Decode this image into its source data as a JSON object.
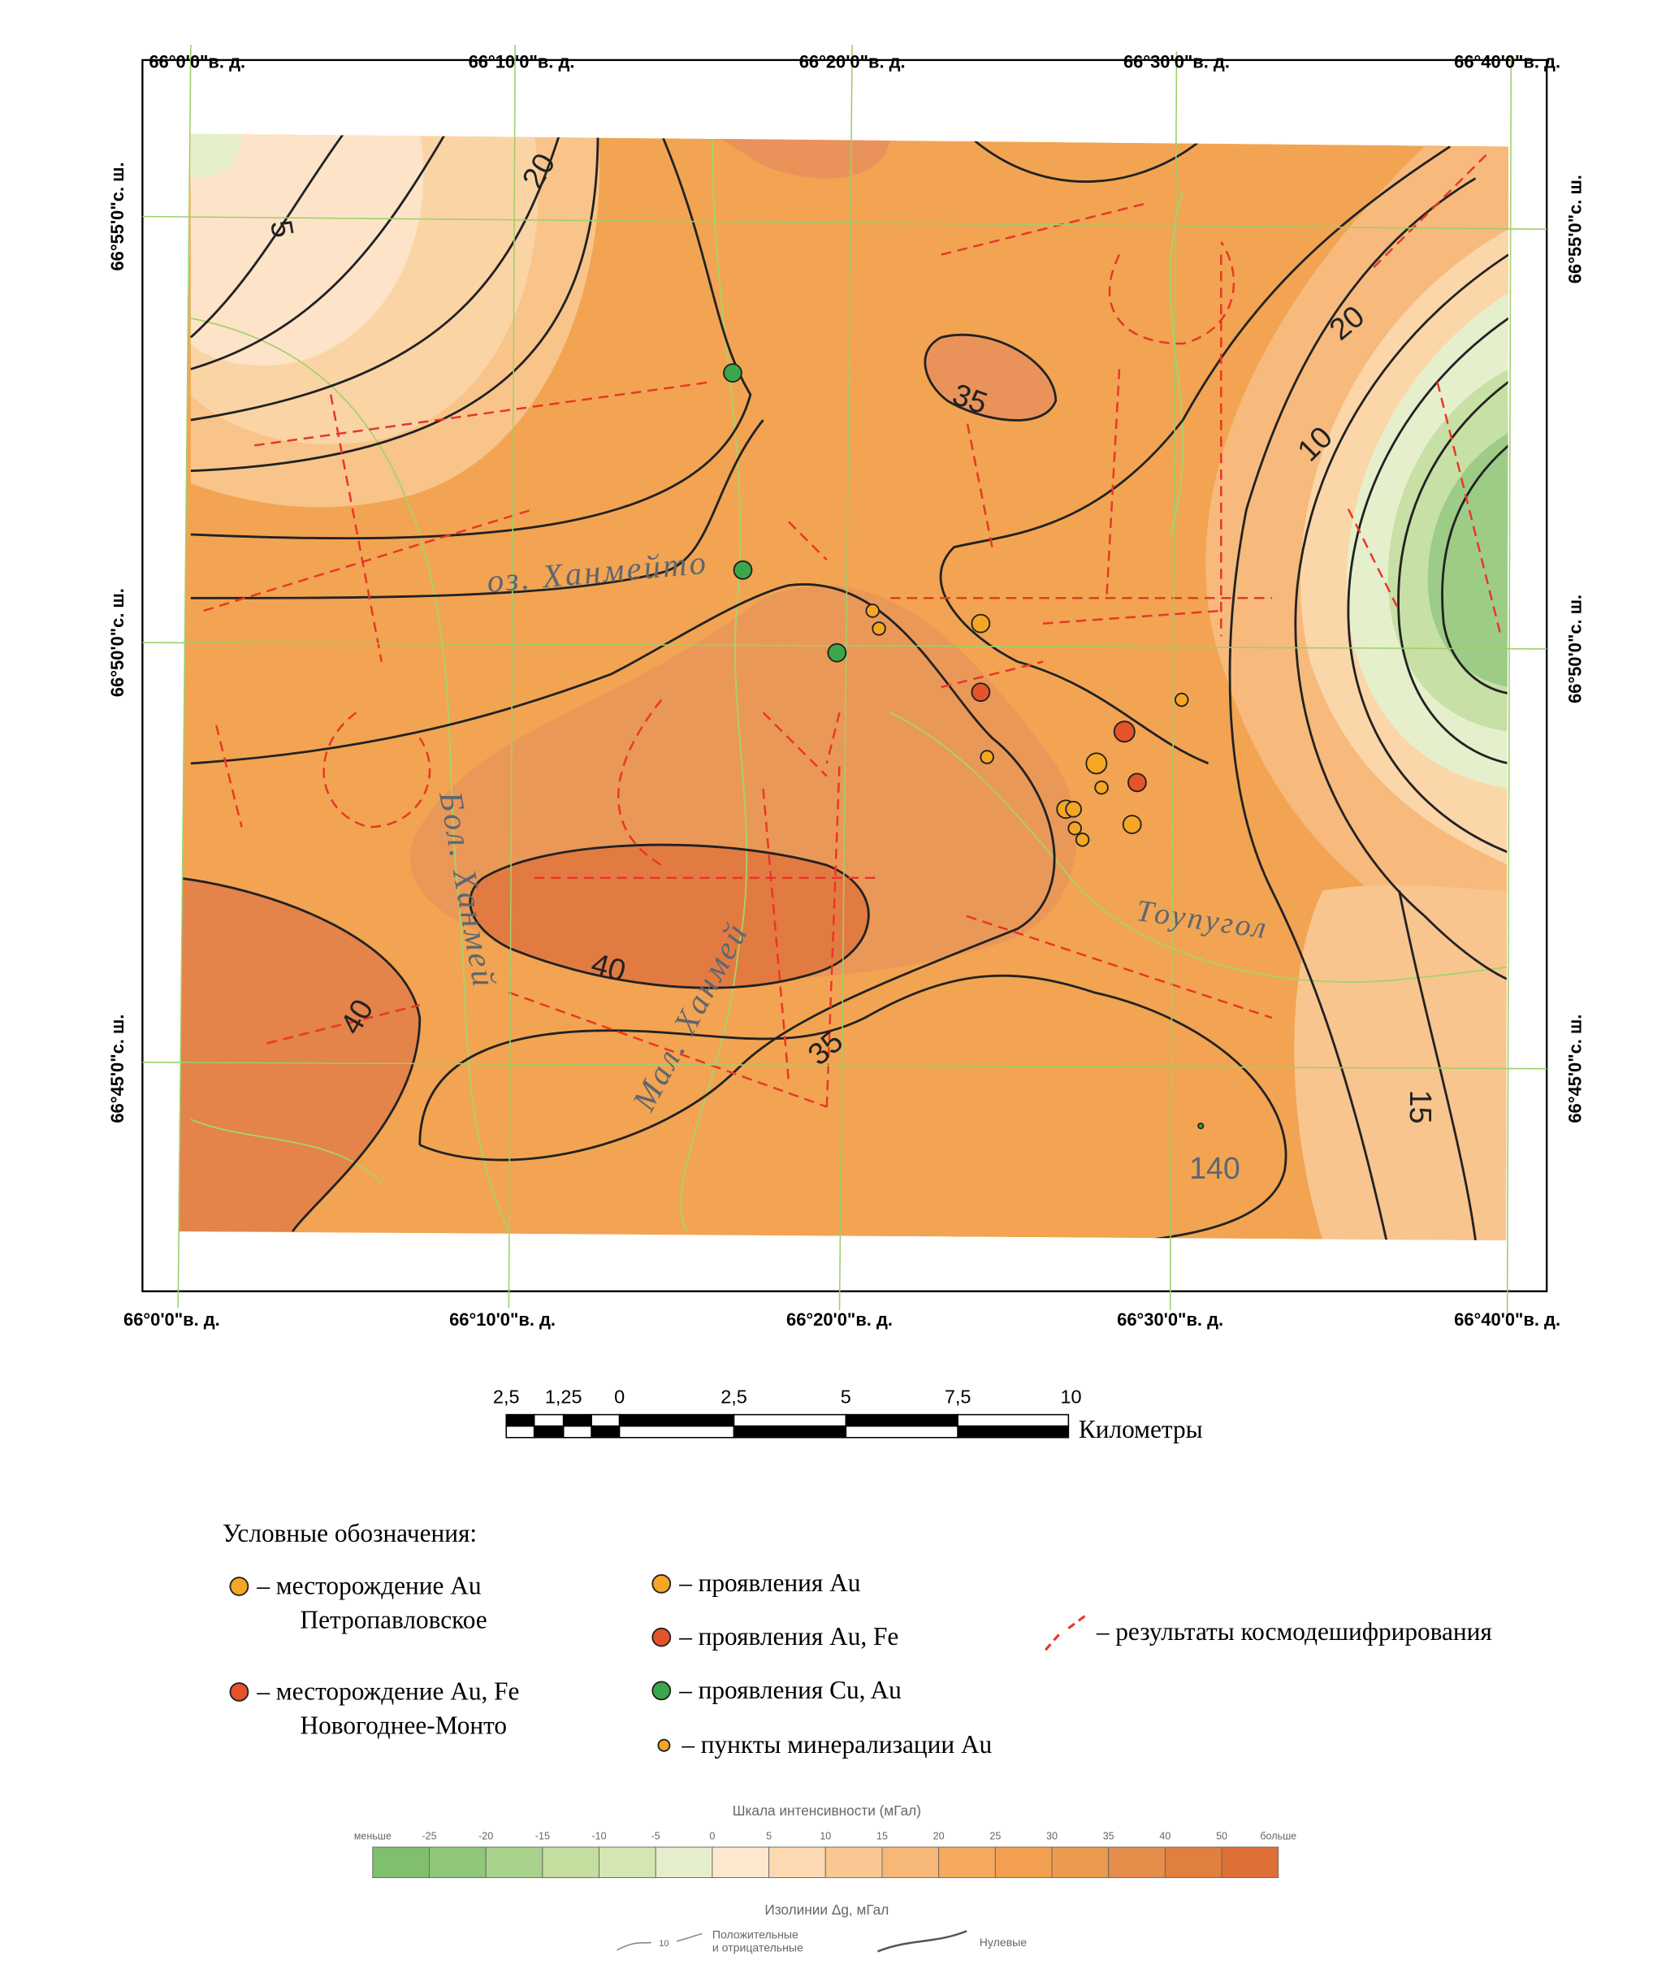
{
  "map": {
    "top_lon_labels": [
      "66°0'0\"в. д.",
      "66°10'0\"в. д.",
      "66°20'0\"в. д.",
      "66°30'0\"в. д.",
      "66°40'0\"в. д."
    ],
    "bottom_lon_labels": [
      "66°0'0\"в. д.",
      "66°10'0\"в. д.",
      "66°20'0\"в. д.",
      "66°30'0\"в. д.",
      "66°40'0\"в. д."
    ],
    "left_lat_labels": [
      "66°55'0\"с. ш.",
      "66°50'0\"с. ш.",
      "66°45'0\"с. ш."
    ],
    "right_lat_labels": [
      "66°55'0\"с. ш.",
      "66°50'0\"с. ш.",
      "66°45'0\"с. ш."
    ],
    "contour_labels": [
      "20",
      "5",
      "35",
      "20",
      "10",
      "40",
      "40",
      "35",
      "15"
    ],
    "place_labels": [
      "оз. Ханмейто",
      "Бол. Ханмей",
      "Мал. Ханмей",
      "Тоупугол",
      "140"
    ]
  },
  "scale_bar": {
    "ticks": [
      "2,5",
      "1,25",
      "0",
      "2,5",
      "5",
      "7,5",
      "10"
    ],
    "unit": "Километры"
  },
  "legend": {
    "title": "Условные обозначения:",
    "items": [
      {
        "label_lines": [
          "– месторождение Au",
          "Петропавловское"
        ],
        "color": "#f5a623"
      },
      {
        "label_lines": [
          "– месторождение Au, Fe",
          "Новогоднее-Монто"
        ],
        "color": "#e5532a"
      },
      {
        "label_lines": [
          "– проявления Au"
        ],
        "color": "#f5a623"
      },
      {
        "label_lines": [
          "– проявления Au, Fe"
        ],
        "color": "#e5532a"
      },
      {
        "label_lines": [
          "– проявления Cu, Au"
        ],
        "color": "#3aa84a"
      },
      {
        "label_lines": [
          "– пункты минерализации Au"
        ],
        "color": "#f5a623"
      },
      {
        "label_lines": [
          "– результаты космодешифрирования"
        ],
        "color": "#e8372a"
      }
    ]
  },
  "intensity_scale": {
    "title": "Шкала интенсивности (мГал)",
    "labels": [
      "меньше",
      "-25",
      "-20",
      "-15",
      "-10",
      "-5",
      "0",
      "5",
      "10",
      "15",
      "20",
      "25",
      "30",
      "35",
      "40",
      "50",
      "больше"
    ],
    "colors": [
      "#7fbf6e",
      "#8fc77a",
      "#a9d28c",
      "#c3de9f",
      "#d5e6b3",
      "#e5efcd",
      "#fde8cf",
      "#fcd9b0",
      "#f9c892",
      "#f7b877",
      "#f5aa60",
      "#f2a04f",
      "#eb9a4e",
      "#e58e4c",
      "#e07f3e",
      "#de6f36"
    ]
  },
  "isolines": {
    "title": "Изолинии Δg, мГал",
    "sample_label": "10",
    "positive_lines": [
      "Положительные",
      "и отрицательные"
    ],
    "zero_label": "Нулевые"
  }
}
